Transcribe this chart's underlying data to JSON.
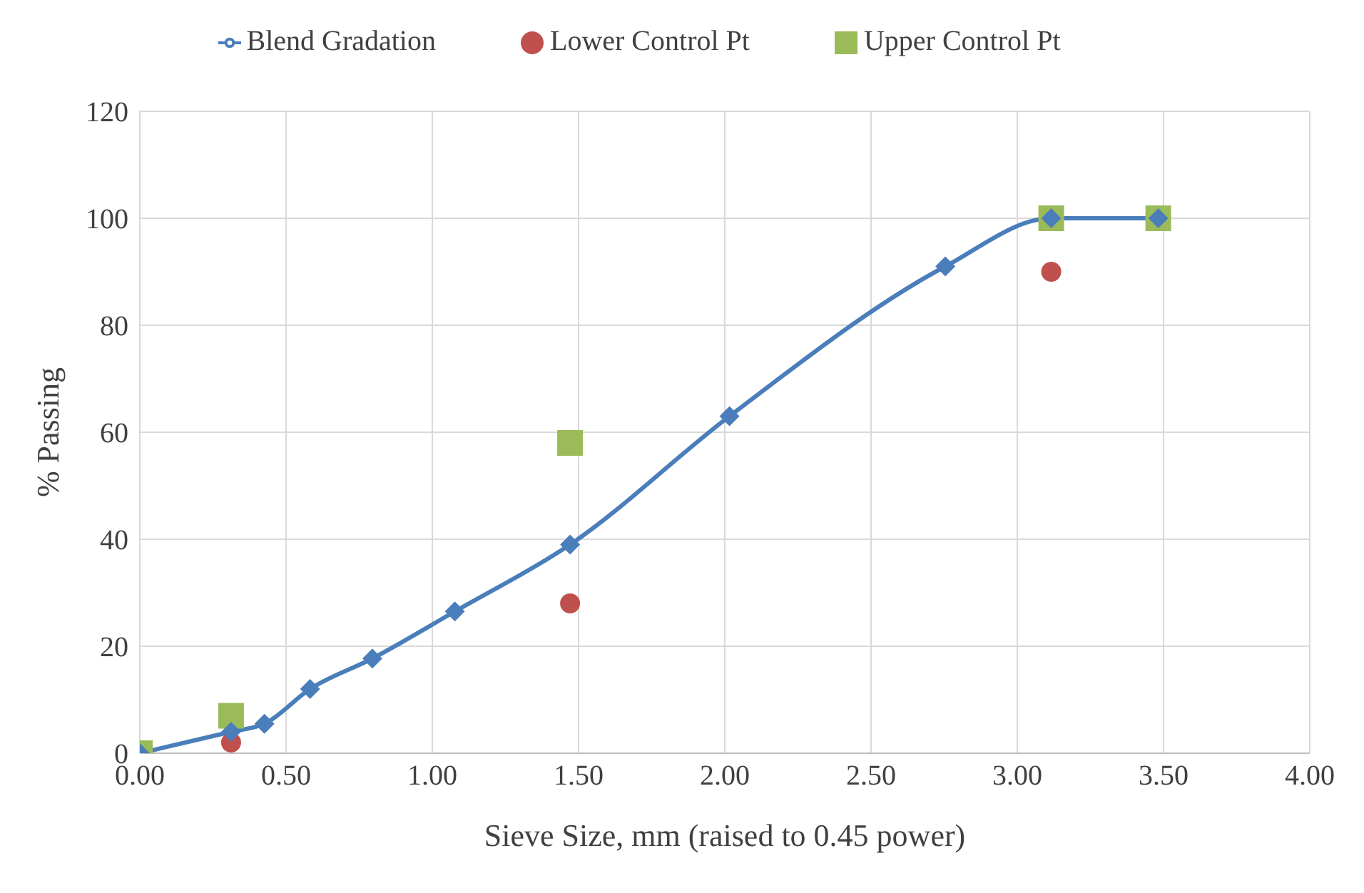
{
  "chart_data": {
    "type": "line",
    "xlabel": "Sieve Size, mm (raised to 0.45 power)",
    "ylabel": "% Passing",
    "xlim": [
      0,
      4
    ],
    "xticks": [
      {
        "value": 0,
        "label": "0.00"
      },
      {
        "value": 0.5,
        "label": "0.50"
      },
      {
        "value": 1,
        "label": "1.00"
      },
      {
        "value": 1.5,
        "label": "1.50"
      },
      {
        "value": 2,
        "label": "2.00"
      },
      {
        "value": 2.5,
        "label": "2.50"
      },
      {
        "value": 3,
        "label": "3.00"
      },
      {
        "value": 3.5,
        "label": "3.50"
      },
      {
        "value": 4,
        "label": "4.00"
      }
    ],
    "ylim": [
      0,
      120
    ],
    "yticks": [
      0,
      20,
      40,
      60,
      80,
      100,
      120
    ],
    "grid": true,
    "legend": "top",
    "series": [
      {
        "name": "Blend Gradation",
        "marker": "diamond",
        "color": "#4a7ebb",
        "x": [
          0,
          0.312,
          0.426,
          0.582,
          0.795,
          1.077,
          1.471,
          2.016,
          2.754,
          3.116,
          3.482
        ],
        "values": [
          0,
          4,
          5.5,
          12,
          17.7,
          26.5,
          39,
          63,
          91,
          100,
          100
        ]
      },
      {
        "name": "Lower Control Pt",
        "type": "scatter",
        "marker": "circle",
        "color": "#c0504d",
        "x": [
          0.312,
          1.471,
          3.116
        ],
        "values": [
          2,
          28,
          90
        ]
      },
      {
        "name": "Upper Control Pt",
        "type": "scatter",
        "marker": "square",
        "color": "#9bbb59",
        "x": [
          0,
          0.312,
          1.471,
          3.116,
          3.482
        ],
        "values": [
          0,
          7,
          58,
          100,
          100
        ]
      }
    ]
  }
}
